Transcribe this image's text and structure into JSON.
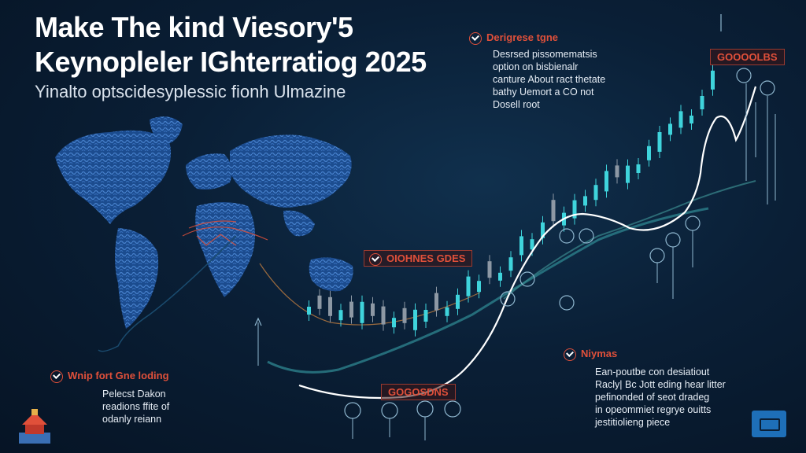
{
  "header": {
    "title_line1": "Make The kind Viesory'5",
    "title_line2": "Keynopleler IGhterratiog 2025",
    "subtitle": "Yinalto optscidesyplessic fionh Ulmazine"
  },
  "callouts": {
    "top": {
      "title": "Derigrese tgne",
      "lines": [
        "Desrsed pissomematsis",
        "option on bisbienalr",
        "canture About ract thetate",
        "bathy Uemort a CO not",
        "Dosell root"
      ]
    },
    "bottom_right": {
      "title": "Niymas",
      "lines": [
        "Ean-poutbe con desiatiout",
        "Racly| Bc Jott eding hear litter",
        "pefinonded of seot dradeg",
        "in opeommiet regrye ouitts",
        "jestitiolieng piece"
      ]
    },
    "bottom_left": {
      "title": "Wnip fort Gne loding",
      "lines": [
        "Pelecst Dakon",
        "readions ffite of",
        "odanly reiann"
      ]
    }
  },
  "chart_labels": {
    "top_right": "GOOOOLBS",
    "middle": "OIOHNES GDES",
    "bottom": "GOGOSDNS"
  },
  "colors": {
    "accent_red": "#e0503a",
    "candle_cyan": "#3fd4dc",
    "candle_gray": "#8d98a4",
    "map_blue": "#2f68b8",
    "line_white": "#ffffff"
  },
  "icons": [
    "check-badge-icon",
    "chat-bubble-icon",
    "temple-logo-icon"
  ]
}
